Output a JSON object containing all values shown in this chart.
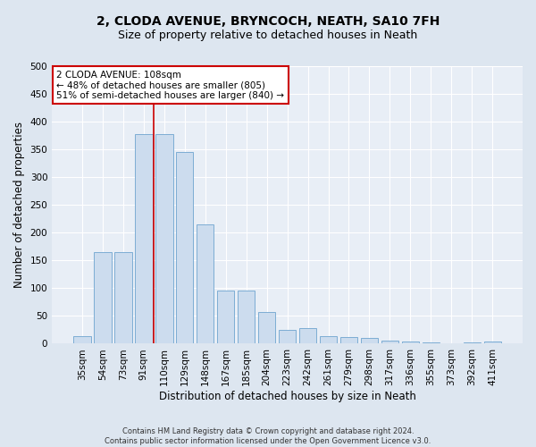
{
  "title": "2, CLODA AVENUE, BRYNCOCH, NEATH, SA10 7FH",
  "subtitle": "Size of property relative to detached houses in Neath",
  "xlabel": "Distribution of detached houses by size in Neath",
  "ylabel": "Number of detached properties",
  "footer_line1": "Contains HM Land Registry data © Crown copyright and database right 2024.",
  "footer_line2": "Contains public sector information licensed under the Open Government Licence v3.0.",
  "categories": [
    "35sqm",
    "54sqm",
    "73sqm",
    "91sqm",
    "110sqm",
    "129sqm",
    "148sqm",
    "167sqm",
    "185sqm",
    "204sqm",
    "223sqm",
    "242sqm",
    "261sqm",
    "279sqm",
    "298sqm",
    "317sqm",
    "336sqm",
    "355sqm",
    "373sqm",
    "392sqm",
    "411sqm"
  ],
  "values": [
    13,
    165,
    165,
    378,
    378,
    345,
    215,
    95,
    95,
    57,
    25,
    28,
    13,
    12,
    10,
    6,
    4,
    2,
    1,
    2,
    4
  ],
  "bar_color": "#ccdcee",
  "bar_edge_color": "#7dadd4",
  "vline_x": 3.5,
  "vline_color": "#cc0000",
  "annotation_text": "2 CLODA AVENUE: 108sqm\n← 48% of detached houses are smaller (805)\n51% of semi-detached houses are larger (840) →",
  "annotation_box_color": "#ffffff",
  "annotation_box_edge": "#cc0000",
  "ylim": [
    0,
    500
  ],
  "yticks": [
    0,
    50,
    100,
    150,
    200,
    250,
    300,
    350,
    400,
    450,
    500
  ],
  "bg_color": "#dde6f0",
  "plot_bg_color": "#e8eef6",
  "grid_color": "#ffffff",
  "title_fontsize": 10,
  "subtitle_fontsize": 9,
  "label_fontsize": 8.5,
  "tick_fontsize": 7.5,
  "footer_fontsize": 6.0
}
